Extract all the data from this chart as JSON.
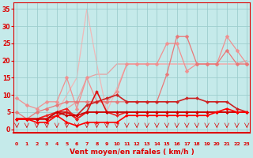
{
  "xlabel": "Vent moyen/en rafales ( km/h )",
  "x": [
    0,
    1,
    2,
    3,
    4,
    5,
    6,
    7,
    8,
    9,
    10,
    11,
    12,
    13,
    14,
    15,
    16,
    17,
    18,
    19,
    20,
    21,
    22,
    23
  ],
  "ylim": [
    -1,
    37
  ],
  "xlim": [
    -0.3,
    23.3
  ],
  "background_color": "#c5eaea",
  "grid_color": "#9ecece",
  "axis_color": "#dd0000",
  "series": [
    {
      "y": [
        3,
        3,
        3,
        4,
        5,
        6,
        8,
        15,
        16,
        16,
        19,
        19,
        19,
        19,
        19,
        19,
        19,
        19,
        19,
        19,
        19,
        19,
        19,
        20
      ],
      "color": "#e8a0a0",
      "marker": null,
      "markersize": 0,
      "linewidth": 0.9,
      "zorder": 1
    },
    {
      "y": [
        3,
        3,
        3,
        4,
        5,
        10,
        15,
        35,
        19,
        5,
        12,
        19,
        19,
        19,
        19,
        19,
        19,
        19,
        19,
        19,
        19,
        19,
        19,
        19
      ],
      "color": "#f0b8b8",
      "marker": null,
      "markersize": 0,
      "linewidth": 0.9,
      "zorder": 1
    },
    {
      "y": [
        9,
        7,
        6,
        8,
        8,
        15,
        6,
        15,
        8,
        8,
        11,
        19,
        19,
        19,
        19,
        25,
        25,
        17,
        19,
        19,
        19,
        27,
        23,
        19
      ],
      "color": "#f09090",
      "marker": "D",
      "markersize": 2.5,
      "linewidth": 0.9,
      "zorder": 2
    },
    {
      "y": [
        5,
        3,
        5,
        6,
        7,
        8,
        8,
        8,
        8,
        8,
        8,
        8,
        8,
        8,
        8,
        16,
        27,
        27,
        19,
        19,
        19,
        23,
        19,
        19
      ],
      "color": "#e87878",
      "marker": "D",
      "markersize": 2.5,
      "linewidth": 0.9,
      "zorder": 2
    },
    {
      "y": [
        3,
        3,
        3,
        3,
        4,
        5,
        4,
        7,
        8,
        9,
        10,
        8,
        8,
        8,
        8,
        8,
        8,
        9,
        9,
        8,
        8,
        8,
        6,
        5
      ],
      "color": "#cc2222",
      "marker": "D",
      "markersize": 2.0,
      "linewidth": 1.2,
      "zorder": 3
    },
    {
      "y": [
        3,
        3,
        3,
        3,
        5,
        5,
        3,
        5,
        11,
        5,
        5,
        5,
        5,
        5,
        5,
        5,
        5,
        5,
        5,
        5,
        5,
        5,
        5,
        5
      ],
      "color": "#dd1111",
      "marker": "D",
      "markersize": 2.0,
      "linewidth": 1.2,
      "zorder": 3
    },
    {
      "y": [
        3,
        3,
        3,
        4,
        5,
        6,
        3,
        5,
        5,
        5,
        4,
        5,
        5,
        5,
        5,
        5,
        5,
        5,
        5,
        5,
        5,
        5,
        5,
        5
      ],
      "color": "#ee2222",
      "marker": "D",
      "markersize": 2.0,
      "linewidth": 1.2,
      "zorder": 3
    },
    {
      "y": [
        3,
        3,
        3,
        3,
        5,
        4,
        4,
        5,
        5,
        5,
        5,
        5,
        5,
        5,
        5,
        5,
        5,
        5,
        5,
        5,
        5,
        5,
        5,
        5
      ],
      "color": "#cc0000",
      "marker": "D",
      "markersize": 2.0,
      "linewidth": 1.2,
      "zorder": 3
    },
    {
      "y": [
        3,
        3,
        2,
        2,
        4,
        2,
        1,
        2,
        2,
        2,
        2,
        4,
        4,
        4,
        4,
        4,
        4,
        4,
        4,
        4,
        5,
        6,
        5,
        5
      ],
      "color": "#ff0000",
      "marker": "D",
      "markersize": 2.0,
      "linewidth": 1.2,
      "zorder": 3
    }
  ],
  "yticks": [
    0,
    5,
    10,
    15,
    20,
    25,
    30,
    35
  ],
  "xtick_fontsize": 4.5,
  "ytick_fontsize": 5.5,
  "xlabel_fontsize": 6.5
}
